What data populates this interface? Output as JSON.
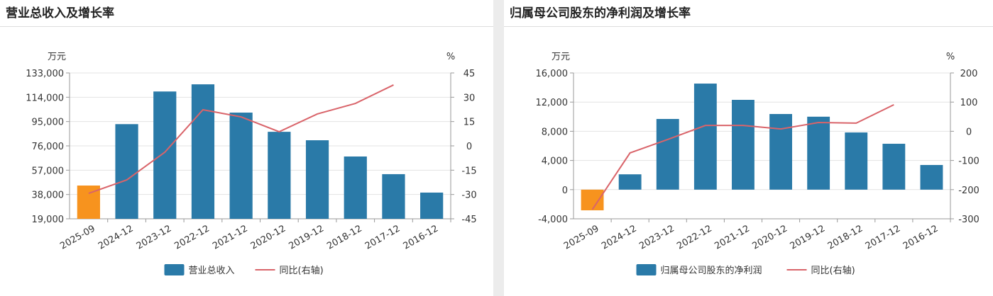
{
  "chart_data": [
    {
      "type": "bar_line",
      "title": "营业总收入及增长率",
      "y_unit": "万元",
      "y2_unit": "%",
      "categories": [
        "2025-09",
        "2024-12",
        "2023-12",
        "2022-12",
        "2021-12",
        "2020-12",
        "2019-12",
        "2018-12",
        "2017-12",
        "2016-12"
      ],
      "series": [
        {
          "name": "营业总收入",
          "color": "#2a7aa8",
          "colors": [
            "#f7931e",
            "#2a7aa8",
            "#2a7aa8",
            "#2a7aa8",
            "#2a7aa8",
            "#2a7aa8",
            "#2a7aa8",
            "#2a7aa8",
            "#2a7aa8",
            "#2a7aa8"
          ],
          "axis": "y",
          "values": [
            45000,
            93000,
            118500,
            124100,
            102000,
            87000,
            80400,
            67700,
            53900,
            39500
          ]
        },
        {
          "name": "同比(右轴)",
          "color": "#d9646a",
          "axis": "y2",
          "values": [
            -29.3,
            -21,
            -3.9,
            22.3,
            17.9,
            8.7,
            19.7,
            26.2,
            37.6,
            null
          ]
        }
      ],
      "ylim": [
        19000,
        133000
      ],
      "yticks": [
        {
          "value": 19000,
          "label": "19,000"
        },
        {
          "value": 38000,
          "label": "38,000"
        },
        {
          "value": 57000,
          "label": "57,000"
        },
        {
          "value": 76000,
          "label": "76,000"
        },
        {
          "value": 95000,
          "label": "95,000"
        },
        {
          "value": 114000,
          "label": "114,000"
        },
        {
          "value": 133000,
          "label": "133,000"
        }
      ],
      "y2lim": [
        -45,
        45
      ],
      "y2ticks": [
        -45,
        -30,
        -15,
        0,
        15,
        30,
        45
      ],
      "grid": true
    },
    {
      "type": "bar_line",
      "title": "归属母公司股东的净利润及增长率",
      "y_unit": "万元",
      "y2_unit": "%",
      "categories": [
        "2025-09",
        "2024-12",
        "2023-12",
        "2022-12",
        "2021-12",
        "2020-12",
        "2019-12",
        "2018-12",
        "2017-12",
        "2016-12"
      ],
      "series": [
        {
          "name": "归属母公司股东的净利润",
          "color": "#2a7aa8",
          "colors": [
            "#f7931e",
            "#2a7aa8",
            "#2a7aa8",
            "#2a7aa8",
            "#2a7aa8",
            "#2a7aa8",
            "#2a7aa8",
            "#2a7aa8",
            "#2a7aa8",
            "#2a7aa8"
          ],
          "axis": "y",
          "values": [
            -2835,
            2100,
            9690,
            14540,
            12310,
            10370,
            10000,
            7840,
            6290,
            3380
          ]
        },
        {
          "name": "同比(右轴)",
          "color": "#d9646a",
          "axis": "y2",
          "values": [
            -268,
            -74,
            -28,
            20,
            20,
            8,
            30,
            28,
            91,
            null
          ]
        }
      ],
      "ylim": [
        -4000,
        16000
      ],
      "yticks": [
        {
          "value": -4000,
          "label": "-4,000"
        },
        0,
        {
          "value": 4000,
          "label": "4,000"
        },
        {
          "value": 8000,
          "label": "8,000"
        },
        {
          "value": 12000,
          "label": "12,000"
        },
        {
          "value": 16000,
          "label": "16,000"
        }
      ],
      "y2lim": [
        -300,
        200
      ],
      "y2ticks": [
        -300,
        -200,
        -100,
        0,
        100,
        200
      ],
      "grid": true
    }
  ]
}
